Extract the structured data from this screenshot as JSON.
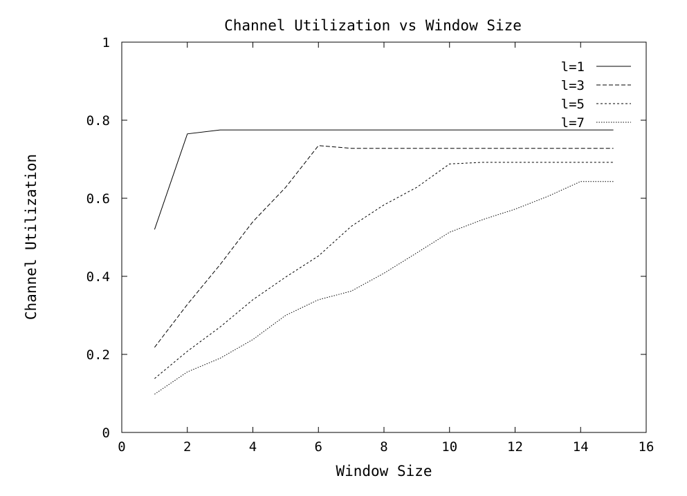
{
  "chart_data": {
    "type": "line",
    "title": "Channel Utilization vs Window Size",
    "xlabel": "Window Size",
    "ylabel": "Channel Utilization",
    "xlim": [
      0,
      16
    ],
    "ylim": [
      0,
      1
    ],
    "xticks": [
      0,
      2,
      4,
      6,
      8,
      10,
      12,
      14,
      16
    ],
    "yticks": [
      0,
      0.2,
      0.4,
      0.6,
      0.8,
      1
    ],
    "ytick_labels": [
      "0",
      "0.2",
      "0.4",
      "0.6",
      "0.8",
      "1"
    ],
    "grid": false,
    "legend_position": "top-right",
    "x": [
      1,
      2,
      3,
      4,
      5,
      6,
      7,
      8,
      9,
      10,
      11,
      12,
      13,
      14,
      15
    ],
    "series": [
      {
        "name": "l=1",
        "dash": "solid",
        "values": [
          0.52,
          0.765,
          0.775,
          0.775,
          0.775,
          0.775,
          0.775,
          0.775,
          0.775,
          0.775,
          0.775,
          0.775,
          0.775,
          0.775,
          0.775
        ]
      },
      {
        "name": "l=3",
        "dash": "dashed",
        "values": [
          0.218,
          0.328,
          0.43,
          0.54,
          0.628,
          0.735,
          0.728,
          0.728,
          0.728,
          0.728,
          0.728,
          0.728,
          0.728,
          0.728,
          0.728
        ]
      },
      {
        "name": "l=5",
        "dash": "short-dashed",
        "values": [
          0.138,
          0.208,
          0.27,
          0.34,
          0.398,
          0.452,
          0.528,
          0.583,
          0.628,
          0.688,
          0.692,
          0.692,
          0.692,
          0.692,
          0.692
        ]
      },
      {
        "name": "l=7",
        "dash": "dotted",
        "values": [
          0.098,
          0.155,
          0.19,
          0.238,
          0.3,
          0.34,
          0.362,
          0.408,
          0.46,
          0.513,
          0.545,
          0.572,
          0.605,
          0.643,
          0.643
        ]
      }
    ]
  }
}
